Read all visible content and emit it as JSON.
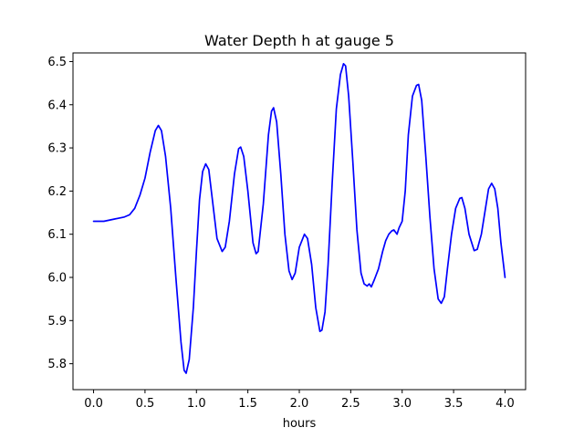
{
  "chart_data": {
    "type": "line",
    "title": "Water Depth h at gauge 5",
    "xlabel": "hours",
    "ylabel": "",
    "xlim": [
      -0.2,
      4.2
    ],
    "ylim": [
      5.74,
      6.52
    ],
    "xticks": [
      0.0,
      0.5,
      1.0,
      1.5,
      2.0,
      2.5,
      3.0,
      3.5,
      4.0
    ],
    "xtick_labels": [
      "0.0",
      "0.5",
      "1.0",
      "1.5",
      "2.0",
      "2.5",
      "3.0",
      "3.5",
      "4.0"
    ],
    "yticks": [
      5.8,
      5.9,
      6.0,
      6.1,
      6.2,
      6.3,
      6.4,
      6.5
    ],
    "ytick_labels": [
      "5.8",
      "5.9",
      "6.0",
      "6.1",
      "6.2",
      "6.3",
      "6.4",
      "6.5"
    ],
    "grid": false,
    "series": [
      {
        "name": "",
        "color": "#0000ff",
        "points": [
          [
            0.0,
            6.13
          ],
          [
            0.1,
            6.13
          ],
          [
            0.2,
            6.135
          ],
          [
            0.3,
            6.14
          ],
          [
            0.35,
            6.145
          ],
          [
            0.4,
            6.16
          ],
          [
            0.45,
            6.19
          ],
          [
            0.5,
            6.23
          ],
          [
            0.55,
            6.29
          ],
          [
            0.6,
            6.34
          ],
          [
            0.63,
            6.352
          ],
          [
            0.66,
            6.34
          ],
          [
            0.7,
            6.28
          ],
          [
            0.75,
            6.16
          ],
          [
            0.8,
            6.0
          ],
          [
            0.85,
            5.85
          ],
          [
            0.88,
            5.785
          ],
          [
            0.9,
            5.778
          ],
          [
            0.93,
            5.81
          ],
          [
            0.97,
            5.93
          ],
          [
            1.0,
            6.06
          ],
          [
            1.03,
            6.18
          ],
          [
            1.06,
            6.245
          ],
          [
            1.09,
            6.263
          ],
          [
            1.12,
            6.25
          ],
          [
            1.15,
            6.19
          ],
          [
            1.2,
            6.09
          ],
          [
            1.25,
            6.06
          ],
          [
            1.28,
            6.07
          ],
          [
            1.32,
            6.13
          ],
          [
            1.37,
            6.24
          ],
          [
            1.41,
            6.298
          ],
          [
            1.43,
            6.302
          ],
          [
            1.46,
            6.28
          ],
          [
            1.5,
            6.2
          ],
          [
            1.55,
            6.08
          ],
          [
            1.58,
            6.055
          ],
          [
            1.6,
            6.06
          ],
          [
            1.65,
            6.17
          ],
          [
            1.7,
            6.33
          ],
          [
            1.73,
            6.385
          ],
          [
            1.75,
            6.393
          ],
          [
            1.78,
            6.36
          ],
          [
            1.82,
            6.24
          ],
          [
            1.86,
            6.1
          ],
          [
            1.9,
            6.015
          ],
          [
            1.93,
            5.995
          ],
          [
            1.96,
            6.01
          ],
          [
            2.0,
            6.07
          ],
          [
            2.05,
            6.1
          ],
          [
            2.08,
            6.09
          ],
          [
            2.12,
            6.03
          ],
          [
            2.16,
            5.93
          ],
          [
            2.2,
            5.875
          ],
          [
            2.22,
            5.878
          ],
          [
            2.25,
            5.92
          ],
          [
            2.28,
            6.03
          ],
          [
            2.32,
            6.22
          ],
          [
            2.36,
            6.39
          ],
          [
            2.4,
            6.47
          ],
          [
            2.43,
            6.495
          ],
          [
            2.45,
            6.49
          ],
          [
            2.48,
            6.42
          ],
          [
            2.52,
            6.27
          ],
          [
            2.56,
            6.11
          ],
          [
            2.6,
            6.01
          ],
          [
            2.63,
            5.985
          ],
          [
            2.66,
            5.98
          ],
          [
            2.68,
            5.985
          ],
          [
            2.7,
            5.978
          ],
          [
            2.73,
            5.995
          ],
          [
            2.77,
            6.02
          ],
          [
            2.81,
            6.06
          ],
          [
            2.84,
            6.085
          ],
          [
            2.87,
            6.1
          ],
          [
            2.9,
            6.108
          ],
          [
            2.92,
            6.11
          ],
          [
            2.95,
            6.1
          ],
          [
            2.97,
            6.115
          ],
          [
            3.0,
            6.13
          ],
          [
            3.03,
            6.2
          ],
          [
            3.06,
            6.33
          ],
          [
            3.1,
            6.42
          ],
          [
            3.14,
            6.445
          ],
          [
            3.16,
            6.447
          ],
          [
            3.19,
            6.41
          ],
          [
            3.23,
            6.28
          ],
          [
            3.27,
            6.14
          ],
          [
            3.31,
            6.02
          ],
          [
            3.35,
            5.95
          ],
          [
            3.38,
            5.94
          ],
          [
            3.41,
            5.955
          ],
          [
            3.44,
            6.02
          ],
          [
            3.48,
            6.1
          ],
          [
            3.52,
            6.16
          ],
          [
            3.56,
            6.183
          ],
          [
            3.58,
            6.185
          ],
          [
            3.61,
            6.16
          ],
          [
            3.65,
            6.1
          ],
          [
            3.7,
            6.062
          ],
          [
            3.73,
            6.065
          ],
          [
            3.77,
            6.1
          ],
          [
            3.81,
            6.16
          ],
          [
            3.84,
            6.205
          ],
          [
            3.87,
            6.218
          ],
          [
            3.9,
            6.205
          ],
          [
            3.93,
            6.16
          ],
          [
            3.96,
            6.08
          ],
          [
            4.0,
            6.0
          ]
        ]
      }
    ]
  }
}
